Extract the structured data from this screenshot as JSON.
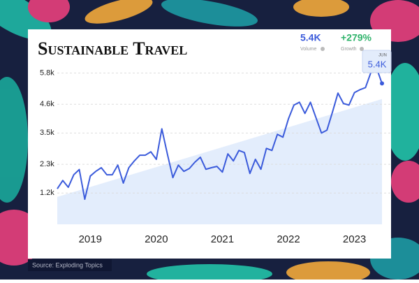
{
  "chart_data": {
    "type": "line",
    "title": "Sustainable Travel",
    "stats": [
      {
        "value": "5.4K",
        "label": "Volume"
      },
      {
        "value": "+279%",
        "label": "Growth"
      }
    ],
    "tooltip": {
      "label": "JUN",
      "value": "5.4K"
    },
    "source": "Source: Exploding Topics",
    "categories": [
      null,
      null,
      null,
      null,
      null,
      null,
      "2019",
      null,
      null,
      null,
      null,
      null,
      null,
      null,
      null,
      null,
      null,
      null,
      "2020",
      null,
      null,
      null,
      null,
      null,
      null,
      null,
      null,
      null,
      null,
      null,
      "2021",
      null,
      null,
      null,
      null,
      null,
      null,
      null,
      null,
      null,
      null,
      null,
      "2022",
      null,
      null,
      null,
      null,
      null,
      null,
      null,
      null,
      null,
      null,
      null,
      "2023",
      null,
      null,
      null,
      null,
      "JUN"
    ],
    "series": [
      {
        "color": "#3b5bdb",
        "values": [
          1360,
          1680,
          1420,
          1900,
          2100,
          960,
          1850,
          2030,
          2170,
          1900,
          1900,
          2270,
          1580,
          2170,
          2430,
          2650,
          2650,
          2780,
          2490,
          3660,
          2700,
          1790,
          2270,
          2030,
          2140,
          2380,
          2570,
          2110,
          2170,
          2220,
          2000,
          2700,
          2430,
          2830,
          2750,
          1950,
          2490,
          2110,
          2910,
          2830,
          3450,
          3340,
          4040,
          4570,
          4680,
          4250,
          4680,
          4090,
          3500,
          3610,
          4300,
          5030,
          4630,
          4570,
          5050,
          5160,
          5240,
          5830,
          6000,
          5400
        ]
      }
    ],
    "trend": {
      "start": 1050,
      "end": 4800,
      "color": "#dce9fb"
    },
    "ylim": [
      0,
      6000
    ],
    "yticks": [
      {
        "value": 1200,
        "label": "1.2k"
      },
      {
        "value": 2300,
        "label": "2.3k"
      },
      {
        "value": 3500,
        "label": "3.5k"
      },
      {
        "value": 4600,
        "label": "4.6k"
      },
      {
        "value": 5800,
        "label": "5.8k"
      }
    ],
    "grid": true
  }
}
